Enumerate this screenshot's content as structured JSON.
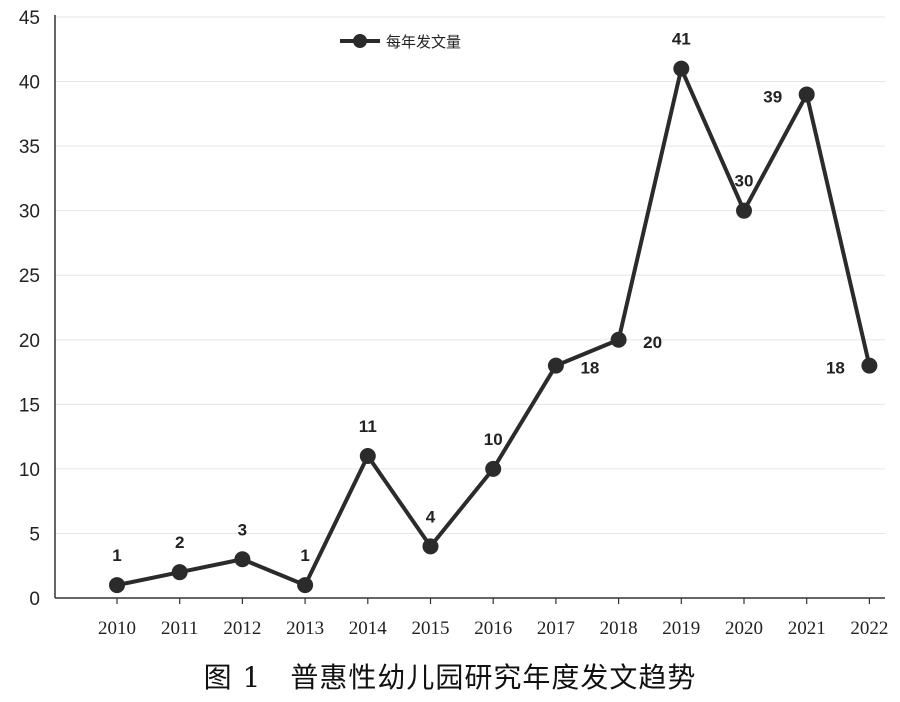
{
  "caption": "图 1　普惠性幼儿园研究年度发文趋势",
  "chart_data": {
    "type": "line",
    "categories": [
      "2010",
      "2011",
      "2012",
      "2013",
      "2014",
      "2015",
      "2016",
      "2017",
      "2018",
      "2019",
      "2020",
      "2021",
      "2022"
    ],
    "series": [
      {
        "name": "每年发文量",
        "values": [
          1,
          2,
          3,
          1,
          11,
          4,
          10,
          18,
          20,
          41,
          30,
          39,
          18
        ]
      }
    ],
    "ylim": [
      0,
      45
    ],
    "yticks": [
      0,
      5,
      10,
      15,
      20,
      25,
      30,
      35,
      40,
      45
    ],
    "grid": "horizontal",
    "legend": "top",
    "colors": {
      "line": "#2b2b2b",
      "grid": "#e6e6e6",
      "axis": "#333333"
    }
  }
}
